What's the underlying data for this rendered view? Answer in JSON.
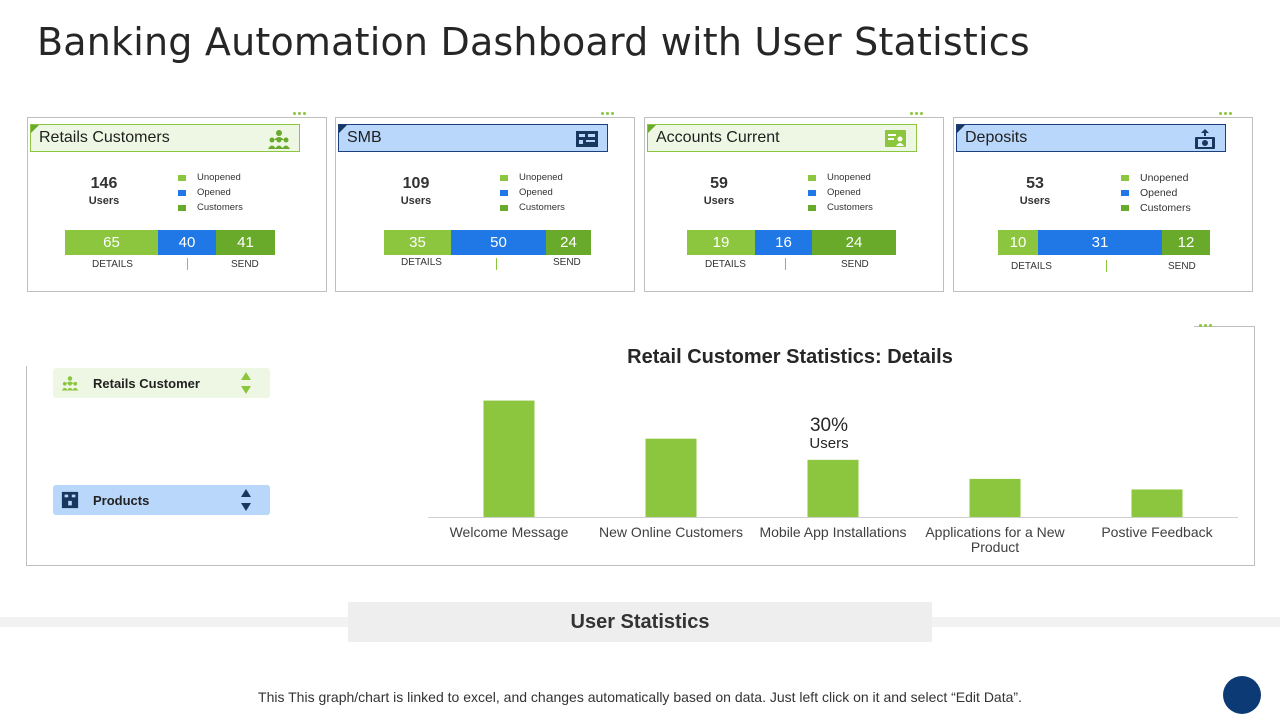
{
  "title": "Banking Automation Dashboard with User Statistics",
  "colors": {
    "green_light": "#8cc63f",
    "blue": "#1f78e6",
    "green_dark": "#6aaa2a",
    "navy": "#0b3a75"
  },
  "legend_labels": [
    "Unopened",
    "Opened",
    "Customers"
  ],
  "cards": [
    {
      "title": "Retails Customers",
      "icon": "users-group-icon",
      "count": "146",
      "count_label": "Users",
      "bar": [
        "65",
        "40",
        "41"
      ],
      "details_label": "DETAILS",
      "send_label": "SEND"
    },
    {
      "title": "SMB",
      "icon": "board-icon",
      "count": "109",
      "count_label": "Users",
      "bar": [
        "35",
        "50",
        "24"
      ],
      "details_label": "DETAILS",
      "send_label": "SEND"
    },
    {
      "title": "Accounts Current",
      "icon": "id-card-icon",
      "count": "59",
      "count_label": "Users",
      "bar": [
        "19",
        "16",
        "24"
      ],
      "details_label": "DETAILS",
      "send_label": "SEND"
    },
    {
      "title": "Deposits",
      "icon": "money-box-icon",
      "count": "53",
      "count_label": "Users",
      "bar": [
        "10",
        "31",
        "12"
      ],
      "details_label": "DETAILS",
      "send_label": "SEND"
    }
  ],
  "selectors": {
    "retail": {
      "label": "Retails Customer",
      "icon": "users-group-icon"
    },
    "products": {
      "label": "Products",
      "icon": "box-icon"
    }
  },
  "chart_data": {
    "type": "bar",
    "title": "Retail Customer Statistics: Details",
    "categories": [
      "Welcome Message",
      "New Online Customers",
      "Mobile App Installations",
      "Applications for a New Product",
      "Postive Feedback"
    ],
    "values": [
      55,
      37,
      27,
      18,
      13
    ],
    "ylim": [
      0,
      60
    ],
    "annotation": {
      "category": "Mobile App Installations",
      "value": "30%",
      "label": "Users"
    },
    "xlabel": "",
    "ylabel": "",
    "grid": false
  },
  "band_label": "User Statistics",
  "footnote": "This This graph/chart is linked to excel, and changes automatically based on data. Just left click on it and select “Edit Data”."
}
